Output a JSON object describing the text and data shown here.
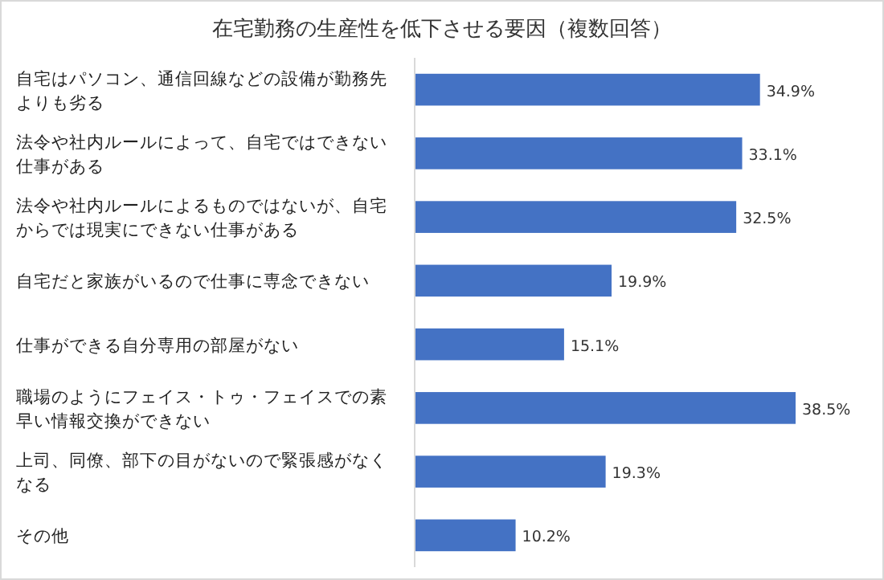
{
  "chart_data": {
    "type": "bar",
    "orientation": "horizontal",
    "title": "在宅勤務の生産性を低下させる要因（複数回答）",
    "categories": [
      "自宅はパソコン、通信回線などの設備が勤務先よりも劣る",
      "法令や社内ルールによって、自宅ではできない仕事がある",
      "法令や社内ルールによるものではないが、自宅からでは現実にできない仕事がある",
      "自宅だと家族がいるので仕事に専念できない",
      "仕事ができる自分専用の部屋がない",
      "職場のようにフェイス・トゥ・フェイスでの素早い情報交換ができない",
      "上司、同僚、部下の目がないので緊張感がなくなる",
      "その他"
    ],
    "values": [
      34.9,
      33.1,
      32.5,
      19.9,
      15.1,
      38.5,
      19.3,
      10.2
    ],
    "value_labels": [
      "34.9%",
      "33.1%",
      "32.5%",
      "19.9%",
      "15.1%",
      "38.5%",
      "19.3%",
      "10.2%"
    ],
    "color": "#4472c4"
  }
}
